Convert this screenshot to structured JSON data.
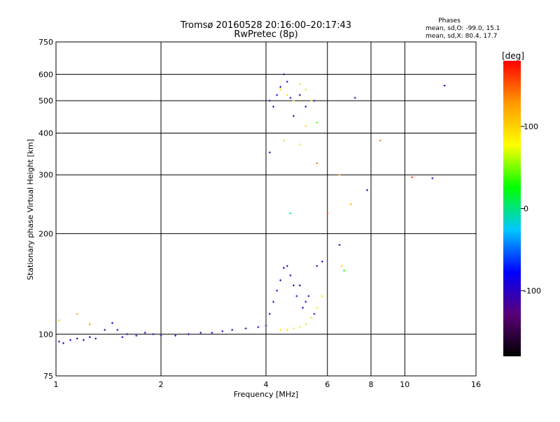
{
  "title": "Tromsø 20160528 20:16:00–20:17:43",
  "subtitle": "RwPretec (8p)",
  "stats": {
    "header": "Phases",
    "line1": "mean, sd,O: -99.0, 15.1",
    "line2": "mean, sd,X: 80.4, 17.7"
  },
  "colorbar": {
    "label": "[deg]",
    "ticks": [
      "100",
      "0",
      "-100"
    ],
    "tick_values": [
      100,
      0,
      -100
    ],
    "range": [
      -180,
      180
    ],
    "colors": [
      "#000000",
      "#5a0078",
      "#0000ff",
      "#00c8ff",
      "#00ff00",
      "#ffff00",
      "#ff9900",
      "#ff0000"
    ]
  },
  "chart_data": {
    "type": "scatter",
    "title": "Tromsø 20160528 20:16:00–20:17:43",
    "subtitle": "RwPretec (8p)",
    "xlabel": "Frequency [MHz]",
    "ylabel": "Stationary phase Virtual Height [km]",
    "x_scale": "log",
    "y_scale": "log",
    "xlim": [
      1,
      16
    ],
    "ylim": [
      75,
      750
    ],
    "x_ticks": [
      1,
      2,
      4,
      6,
      8,
      10,
      16
    ],
    "x_tick_labels": [
      "1",
      "2",
      "4",
      "6",
      "8",
      "10",
      "16"
    ],
    "y_ticks": [
      75,
      100,
      200,
      300,
      400,
      500,
      600,
      750
    ],
    "y_tick_labels": [
      "75",
      "100",
      "200",
      "300",
      "400",
      "500",
      "600",
      "750"
    ],
    "grid": true,
    "color_scale": "phase [deg]",
    "series": [
      {
        "points": [
          [
            1.02,
            95,
            -95
          ],
          [
            1.05,
            94,
            -100
          ],
          [
            1.1,
            96,
            -95
          ],
          [
            1.15,
            97,
            -100
          ],
          [
            1.2,
            96,
            -95
          ],
          [
            1.25,
            98,
            -95
          ],
          [
            1.3,
            97,
            -100
          ],
          [
            1.38,
            103,
            -110
          ],
          [
            1.45,
            108,
            -100
          ],
          [
            1.5,
            103,
            -100
          ],
          [
            1.55,
            98,
            -95
          ],
          [
            1.6,
            100,
            -100
          ],
          [
            1.7,
            99,
            -100
          ],
          [
            1.8,
            101,
            -100
          ],
          [
            1.9,
            100,
            -95
          ],
          [
            2.0,
            99,
            -100
          ],
          [
            2.2,
            99,
            -100
          ],
          [
            2.4,
            100,
            -95
          ],
          [
            2.6,
            101,
            -100
          ],
          [
            2.8,
            101,
            -95
          ],
          [
            3.0,
            102,
            -100
          ],
          [
            3.2,
            103,
            -100
          ],
          [
            3.5,
            104,
            -95
          ],
          [
            3.8,
            105,
            -100
          ],
          [
            4.0,
            106,
            -100
          ],
          [
            4.1,
            115,
            -100
          ],
          [
            4.2,
            125,
            -100
          ],
          [
            4.3,
            135,
            -100
          ],
          [
            4.4,
            145,
            -100
          ],
          [
            4.5,
            158,
            -100
          ],
          [
            4.6,
            160,
            -100
          ],
          [
            4.7,
            150,
            -100
          ],
          [
            4.8,
            140,
            -95
          ],
          [
            4.9,
            130,
            -100
          ],
          [
            5.0,
            140,
            -100
          ],
          [
            5.1,
            120,
            -100
          ],
          [
            5.2,
            125,
            -95
          ],
          [
            5.3,
            130,
            -100
          ],
          [
            5.5,
            115,
            -100
          ],
          [
            5.6,
            160,
            -100
          ],
          [
            5.8,
            165,
            -95
          ],
          [
            4.4,
            103,
            90
          ],
          [
            4.6,
            103,
            95
          ],
          [
            4.8,
            104,
            90
          ],
          [
            5.0,
            105,
            85
          ],
          [
            5.2,
            107,
            90
          ],
          [
            5.4,
            112,
            95
          ],
          [
            5.6,
            120,
            85
          ],
          [
            5.8,
            130,
            90
          ],
          [
            6.6,
            160,
            95
          ],
          [
            6.7,
            155,
            20
          ],
          [
            6.5,
            185,
            -100
          ],
          [
            4.1,
            500,
            -100
          ],
          [
            4.2,
            480,
            -95
          ],
          [
            4.3,
            520,
            -100
          ],
          [
            4.4,
            550,
            -100
          ],
          [
            4.5,
            600,
            -100
          ],
          [
            4.6,
            570,
            -95
          ],
          [
            4.7,
            510,
            -100
          ],
          [
            4.8,
            450,
            -100
          ],
          [
            5.0,
            520,
            -100
          ],
          [
            5.2,
            480,
            -100
          ],
          [
            5.5,
            500,
            -95
          ],
          [
            4.4,
            540,
            95
          ],
          [
            4.6,
            520,
            90
          ],
          [
            4.8,
            500,
            85
          ],
          [
            5.0,
            560,
            90
          ],
          [
            5.2,
            540,
            95
          ],
          [
            5.4,
            500,
            90
          ],
          [
            5.2,
            420,
            95
          ],
          [
            4.5,
            380,
            90
          ],
          [
            5.0,
            370,
            85
          ],
          [
            4.1,
            350,
            -100
          ],
          [
            4.7,
            230,
            0
          ],
          [
            5.6,
            325,
            140
          ],
          [
            6.0,
            230,
            160
          ],
          [
            6.5,
            300,
            110
          ],
          [
            7.0,
            245,
            120
          ],
          [
            7.2,
            510,
            -100
          ],
          [
            7.8,
            270,
            -100
          ],
          [
            8.5,
            380,
            140
          ],
          [
            10.5,
            295,
            160
          ],
          [
            12.0,
            293,
            -100
          ],
          [
            13.0,
            555,
            -100
          ],
          [
            5.6,
            430,
            40
          ],
          [
            1.02,
            110,
            100
          ],
          [
            1.15,
            115,
            110
          ],
          [
            1.25,
            107,
            130
          ]
        ]
      }
    ]
  }
}
